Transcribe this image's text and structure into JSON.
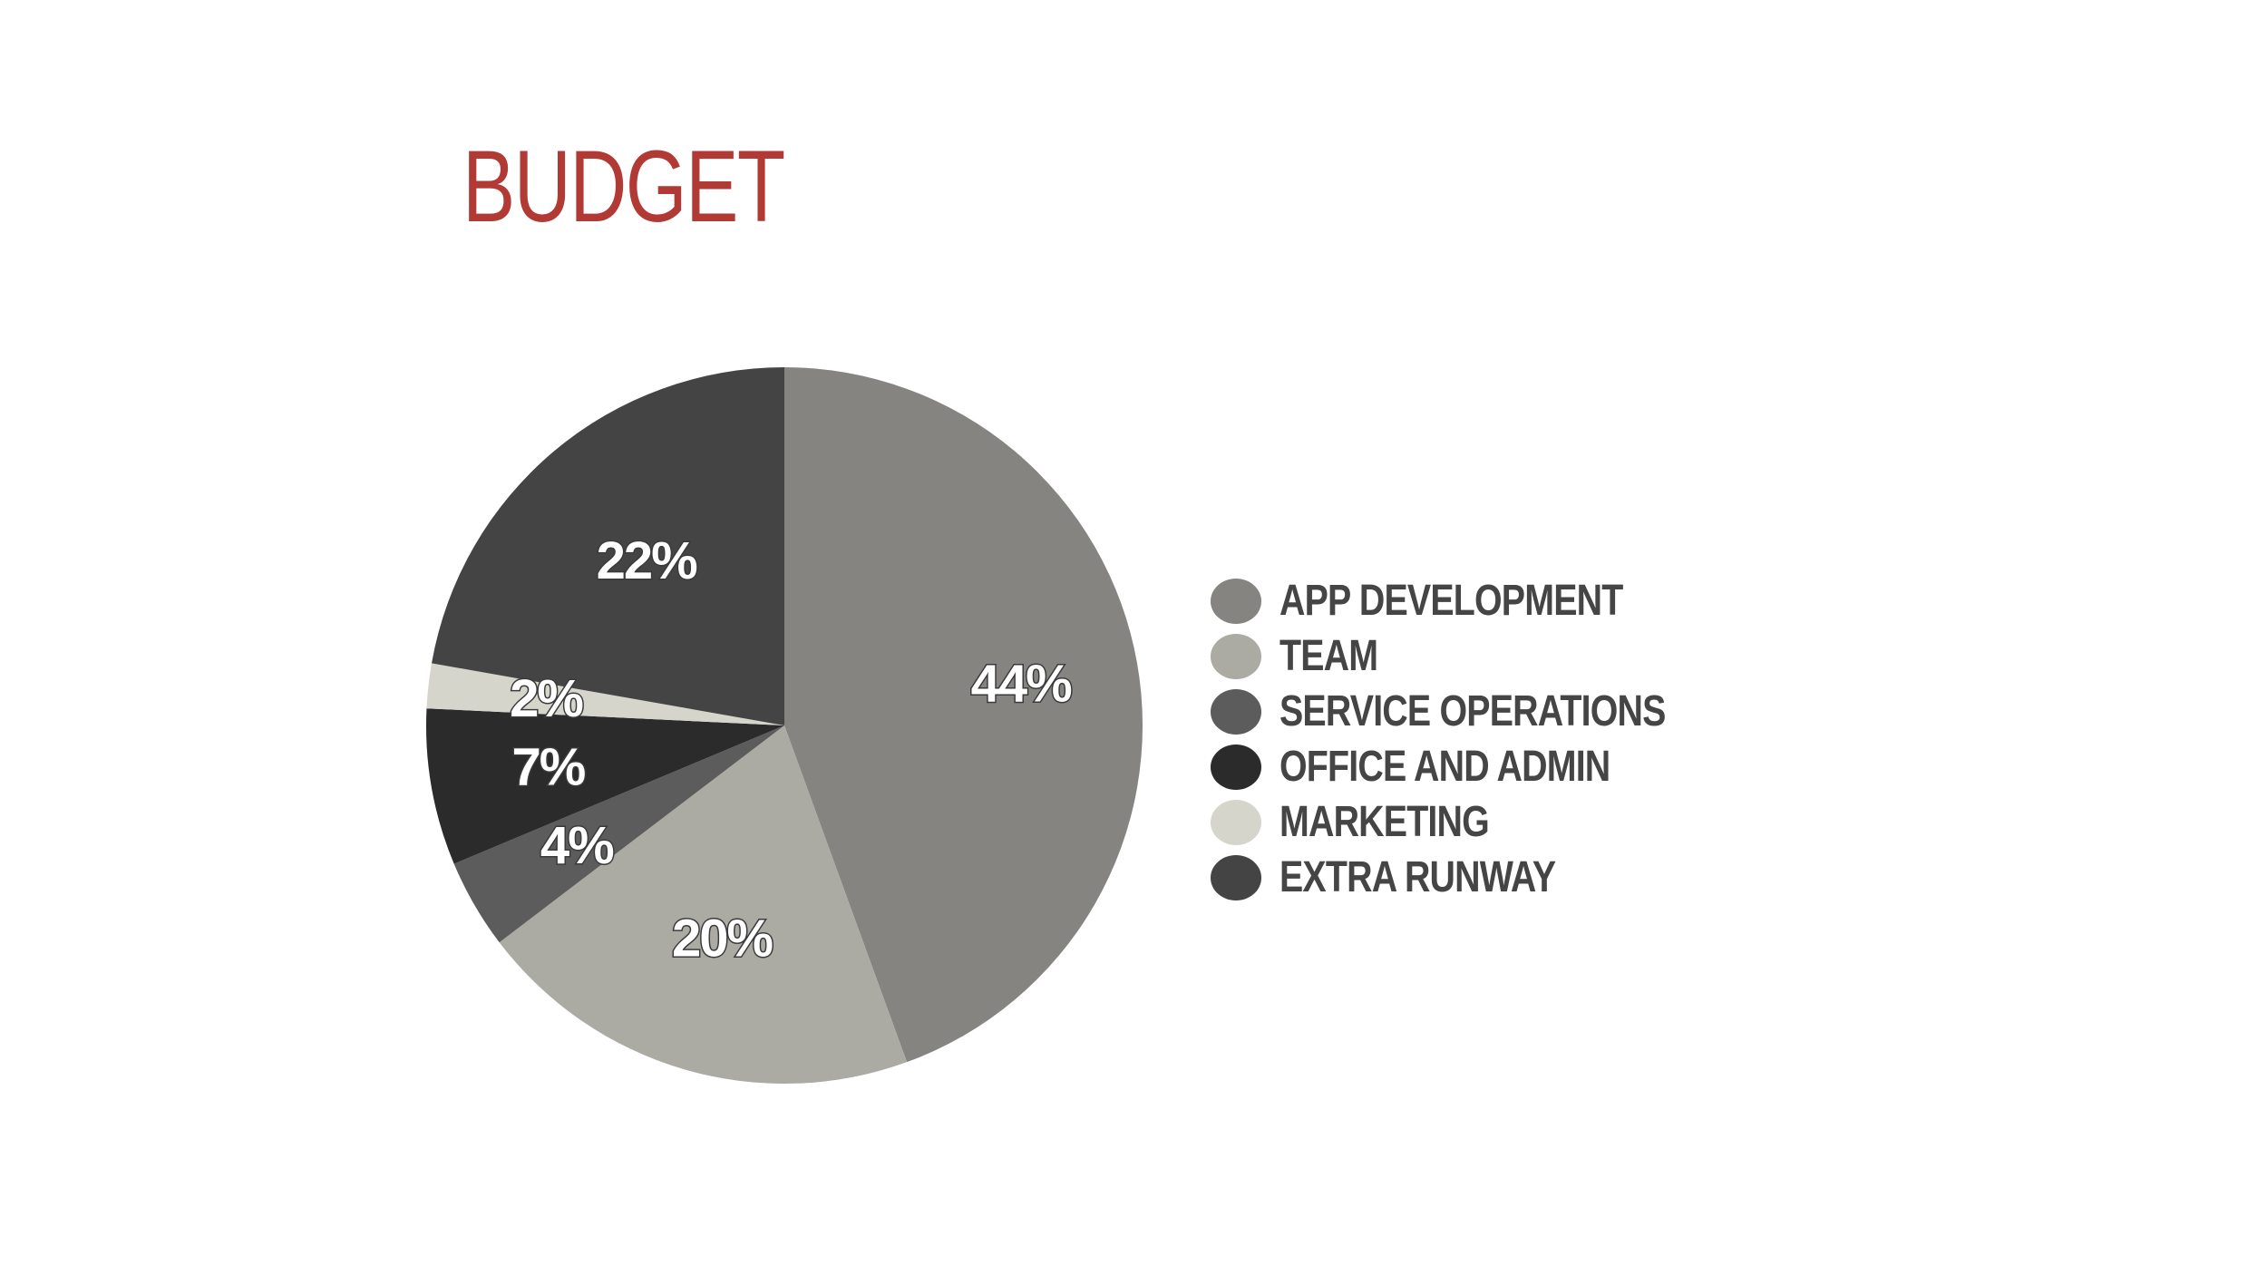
{
  "chart_data": {
    "type": "pie",
    "title": "BUDGET",
    "categories": [
      "APP DEVELOPMENT",
      "TEAM",
      "SERVICE OPERATIONS",
      "OFFICE AND ADMIN",
      "MARKETING",
      "EXTRA RUNWAY"
    ],
    "values": [
      44,
      20,
      4,
      7,
      2,
      22
    ],
    "labels": [
      "44%",
      "20%",
      "4%",
      "7%",
      "2%",
      "22%"
    ],
    "colors": [
      "#858480",
      "#abaaa3",
      "#5c5c5c",
      "#2b2b2b",
      "#d6d5cc",
      "#444444"
    ],
    "start_angle_deg": 0,
    "direction": "clockwise",
    "legend_position": "right"
  }
}
